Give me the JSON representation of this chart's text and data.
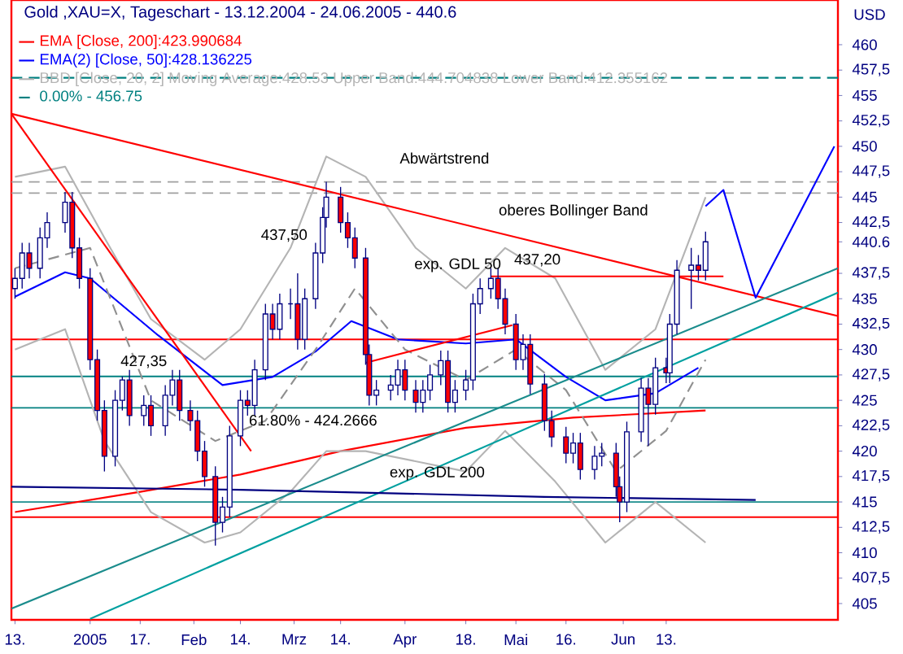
{
  "chart_data": {
    "type": "candlestick",
    "title": "Gold ,XAU=X, Tageschart - 13.12.2004 - 24.06.2005 - 440.6",
    "ylabel": "USD",
    "x": [
      "2004-12-13",
      "2004-12-15",
      "2004-12-17",
      "2004-12-20",
      "2004-12-22",
      "2004-12-27",
      "2004-12-29",
      "2004-12-31",
      "2005-01-03",
      "2005-01-05",
      "2005-01-07",
      "2005-01-10",
      "2005-01-12",
      "2005-01-14",
      "2005-01-18",
      "2005-01-20",
      "2005-01-24",
      "2005-01-26",
      "2005-01-28",
      "2005-01-31",
      "2005-02-02",
      "2005-02-04",
      "2005-02-07",
      "2005-02-09",
      "2005-02-11",
      "2005-02-14",
      "2005-02-16",
      "2005-02-18",
      "2005-02-21",
      "2005-02-23",
      "2005-02-25",
      "2005-02-28",
      "2005-03-02",
      "2005-03-04",
      "2005-03-07",
      "2005-03-09",
      "2005-03-10",
      "2005-03-14",
      "2005-03-16",
      "2005-03-18",
      "2005-03-21",
      "2005-03-22",
      "2005-03-24",
      "2005-03-28",
      "2005-03-30",
      "2005-04-01",
      "2005-04-04",
      "2005-04-06",
      "2005-04-08",
      "2005-04-11",
      "2005-04-13",
      "2005-04-15",
      "2005-04-18",
      "2005-04-20",
      "2005-04-22",
      "2005-04-25",
      "2005-04-27",
      "2005-04-29",
      "2005-05-02",
      "2005-05-04",
      "2005-05-06",
      "2005-05-10",
      "2005-05-12",
      "2005-05-16",
      "2005-05-18",
      "2005-05-20",
      "2005-05-24",
      "2005-05-26",
      "2005-05-30",
      "2005-05-31",
      "2005-06-02",
      "2005-06-06",
      "2005-06-08",
      "2005-06-10",
      "2005-06-13",
      "2005-06-14",
      "2005-06-16",
      "2005-06-20",
      "2005-06-22",
      "2005-06-24"
    ],
    "ohlc": [
      [
        436,
        438,
        435,
        437
      ],
      [
        437,
        440.5,
        436,
        439.5
      ],
      [
        439.5,
        440.5,
        437,
        438
      ],
      [
        438,
        442,
        437,
        441
      ],
      [
        441,
        443.5,
        440,
        442.5
      ],
      [
        442.5,
        445.5,
        441.5,
        444.5
      ],
      [
        444.5,
        445.5,
        439,
        440
      ],
      [
        440,
        441,
        436,
        437
      ],
      [
        437,
        438,
        428,
        429
      ],
      [
        429,
        430,
        423,
        424
      ],
      [
        424,
        425,
        418,
        419.5
      ],
      [
        419.5,
        426,
        418.5,
        425
      ],
      [
        425,
        427.35,
        424,
        427
      ],
      [
        427,
        428,
        422.5,
        423.5
      ],
      [
        423.5,
        425.5,
        422.5,
        424.5
      ],
      [
        424.5,
        425.5,
        421.5,
        422.5
      ],
      [
        422.5,
        426.5,
        421.5,
        425.5
      ],
      [
        425.5,
        428,
        424.5,
        427
      ],
      [
        427,
        428,
        423,
        424
      ],
      [
        424,
        425,
        422,
        423
      ],
      [
        423,
        424,
        419,
        420
      ],
      [
        420,
        421,
        416.5,
        417.5
      ],
      [
        417.5,
        418.5,
        410.7,
        413
      ],
      [
        413,
        415.5,
        412,
        414.5
      ],
      [
        414.5,
        422.5,
        413.5,
        421.5
      ],
      [
        421.5,
        426,
        420.5,
        425
      ],
      [
        425,
        426,
        423.5,
        424.5
      ],
      [
        424.5,
        429,
        423.5,
        428
      ],
      [
        428,
        434.5,
        427,
        433.5
      ],
      [
        433.5,
        434.5,
        431,
        432
      ],
      [
        432,
        435.5,
        431,
        434.5
      ],
      [
        434.5,
        436,
        433,
        434.5
      ],
      [
        434.5,
        437.5,
        430,
        431
      ],
      [
        431,
        436,
        430,
        435
      ],
      [
        435,
        440.5,
        434,
        439.5
      ],
      [
        439.5,
        444,
        438.5,
        443
      ],
      [
        443,
        446.5,
        442,
        445
      ],
      [
        445,
        446,
        441.5,
        442.5
      ],
      [
        442.5,
        443.5,
        440,
        441
      ],
      [
        441,
        442,
        438,
        439
      ],
      [
        439,
        440,
        428.5,
        429.5
      ],
      [
        429.5,
        430.5,
        424.5,
        425.5
      ],
      [
        425.5,
        427,
        424.5,
        426
      ],
      [
        426,
        427.5,
        425,
        426.5
      ],
      [
        426.5,
        429,
        425.5,
        428
      ],
      [
        428,
        429,
        425,
        426
      ],
      [
        426,
        427,
        423.8,
        424.8
      ],
      [
        424.8,
        427,
        423.8,
        426
      ],
      [
        426,
        428.5,
        425,
        427.5
      ],
      [
        427.5,
        429.9,
        426.5,
        428.9
      ],
      [
        428.9,
        429.9,
        423.8,
        424.8
      ],
      [
        424.8,
        427,
        423.8,
        426
      ],
      [
        426,
        428,
        425,
        427
      ],
      [
        427,
        435.5,
        426,
        434.5
      ],
      [
        434.5,
        437,
        433.5,
        436
      ],
      [
        436,
        438,
        435,
        437
      ],
      [
        437,
        438,
        434,
        435
      ],
      [
        435,
        436,
        431.5,
        432.5
      ],
      [
        432.5,
        433.5,
        428,
        429
      ],
      [
        429,
        431.5,
        428,
        430.5
      ],
      [
        430.5,
        431.5,
        425.6,
        426.6
      ],
      [
        426.6,
        427.6,
        422,
        423
      ],
      [
        423,
        424,
        420.4,
        421.4
      ],
      [
        421.4,
        422.4,
        418.8,
        419.8
      ],
      [
        419.8,
        421.8,
        418.8,
        420.8
      ],
      [
        420.8,
        421.8,
        417.2,
        418.2
      ],
      [
        418.2,
        420.5,
        417.2,
        419.5
      ],
      [
        419.5,
        420.8,
        418.5,
        419.8
      ],
      [
        419.8,
        420.8,
        415.5,
        416.5
      ],
      [
        416.5,
        417.5,
        413,
        415
      ],
      [
        415,
        422.9,
        414,
        421.9
      ],
      [
        421.9,
        427.2,
        420.9,
        426.2
      ],
      [
        426.2,
        427.2,
        420.5,
        424.6
      ],
      [
        424.6,
        429.2,
        423.6,
        428.2
      ],
      [
        428.2,
        429.2,
        426.7,
        427.7
      ],
      [
        427.7,
        433.5,
        426.7,
        432.5
      ],
      [
        432.5,
        438.8,
        431.5,
        437.8
      ],
      [
        437.8,
        440,
        434,
        438.3
      ],
      [
        438.3,
        439.3,
        436.8,
        437.8
      ],
      [
        437.8,
        441.6,
        436.8,
        440.6
      ]
    ],
    "series": [
      {
        "type": "line",
        "name": "EMA [Close, 200]:423.990684",
        "color": "#ff0000",
        "x": [
          "2004-12-13",
          "2005-01-17",
          "2005-02-14",
          "2005-03-14",
          "2005-04-18",
          "2005-05-18",
          "2005-06-24"
        ],
        "values": [
          414,
          416,
          417.7,
          420,
          422.3,
          423.3,
          424
        ]
      },
      {
        "type": "line",
        "name": "EMA(2) [Close, 50]:428.136225",
        "color": "#0000ff",
        "x": [
          "2004-12-13",
          "2004-12-27",
          "2005-01-03",
          "2005-01-22",
          "2005-02-09",
          "2005-02-23",
          "2005-03-07",
          "2005-03-17",
          "2005-03-30",
          "2005-04-18",
          "2005-05-02",
          "2005-05-16",
          "2005-05-27",
          "2005-06-10",
          "2005-06-22"
        ],
        "values": [
          435.2,
          437.6,
          437,
          431.4,
          426.5,
          427.3,
          429.8,
          432.8,
          431,
          430.6,
          431,
          427.3,
          425,
          425.7,
          428.2
        ]
      },
      {
        "type": "line",
        "name": "BBD [Close, 20, 2] Moving Average:428.53 Upper Band:444.704838 Lower Band:412.355162",
        "color": "#b4b4b4",
        "x": [
          "2004-12-13",
          "2004-12-27",
          "2005-01-07",
          "2005-01-20",
          "2005-02-04",
          "2005-02-14",
          "2005-02-28",
          "2005-03-10",
          "2005-03-21",
          "2005-04-04",
          "2005-04-18",
          "2005-04-29",
          "2005-05-13",
          "2005-05-27",
          "2005-06-10",
          "2005-06-24"
        ],
        "values": [
          447,
          448,
          441,
          433,
          429,
          432,
          440,
          449,
          447,
          440,
          436,
          440,
          437,
          428,
          432,
          445
        ]
      },
      {
        "type": "line",
        "color": "#b4b4b4",
        "x": [
          "2004-12-13",
          "2004-12-27",
          "2005-01-07",
          "2005-01-20",
          "2005-02-04",
          "2005-02-14",
          "2005-02-28",
          "2005-03-10",
          "2005-03-21",
          "2005-04-04",
          "2005-04-18",
          "2005-04-29",
          "2005-05-13",
          "2005-05-27",
          "2005-06-10",
          "2005-06-24"
        ],
        "values": [
          430,
          432,
          421,
          414,
          411,
          412,
          416,
          420,
          420,
          419,
          418,
          422,
          417,
          411,
          415,
          411
        ]
      },
      {
        "type": "line",
        "color": "#909090",
        "line_style": "dashed",
        "x": [
          "2004-12-13",
          "2005-01-03",
          "2005-01-20",
          "2005-02-07",
          "2005-02-21",
          "2005-03-07",
          "2005-03-18",
          "2005-04-01",
          "2005-04-18",
          "2005-05-02",
          "2005-05-16",
          "2005-05-30",
          "2005-06-13",
          "2005-06-24"
        ],
        "values": [
          438,
          440,
          425,
          421,
          423,
          430,
          436,
          430,
          427,
          430,
          426,
          418,
          422,
          429
        ]
      },
      {
        "type": "line",
        "name": "0.00% - 456.75",
        "color": "#008080",
        "line_style": "dashed",
        "x": [
          "2004-12-12",
          "2005-07-31"
        ],
        "values": [
          456.75,
          456.75
        ]
      },
      {
        "type": "line",
        "color": "#ff0000",
        "x": [
          "2004-12-12",
          "2005-07-31"
        ],
        "values": [
          453.2,
          433.3
        ]
      },
      {
        "type": "line",
        "color": "#ff0000",
        "x": [
          "2004-12-12",
          "2005-02-17"
        ],
        "values": [
          453.2,
          420
        ]
      },
      {
        "type": "line",
        "color": "#ff0000",
        "x": [
          "2005-03-21",
          "2005-05-01"
        ],
        "values": [
          428.7,
          432.4
        ]
      },
      {
        "type": "line",
        "color": "#ff0000",
        "x": [
          "2005-04-25",
          "2005-06-29"
        ],
        "values": [
          437.2,
          437.2
        ]
      },
      {
        "type": "line",
        "color": "#1a8c8c",
        "x": [
          "2004-12-12",
          "2005-07-31"
        ],
        "values": [
          404.5,
          438
        ]
      },
      {
        "type": "line",
        "color": "#00a0a0",
        "x": [
          "2005-01-03",
          "2005-07-31"
        ],
        "values": [
          403.5,
          435.6
        ]
      },
      {
        "type": "line",
        "color": "#000080",
        "x": [
          "2004-12-12",
          "2005-02-14",
          "2005-05-10",
          "2005-07-08"
        ],
        "values": [
          416.5,
          416.2,
          415.5,
          415.2
        ]
      },
      {
        "type": "line",
        "color": "#0000ff",
        "x": [
          "2005-06-24",
          "2005-06-29",
          "2005-07-08",
          "2005-07-30"
        ],
        "values": [
          444.1,
          445.7,
          435.1,
          450
        ]
      }
    ],
    "ref_lines": [
      {
        "axis": "y",
        "value": 431,
        "color": "#ff0000"
      },
      {
        "axis": "y",
        "value": 427.35,
        "color": "#008080"
      },
      {
        "axis": "y",
        "value": 424.2666,
        "color": "#008080"
      },
      {
        "axis": "y",
        "value": 415,
        "color": "#1a8c8c"
      },
      {
        "axis": "y",
        "value": 413.5,
        "color": "#ff0000"
      },
      {
        "axis": "y",
        "value": 446.5,
        "color": "#a0a0a0",
        "line_style": "dashed"
      },
      {
        "axis": "y",
        "value": 445.4,
        "color": "#a0a0a0",
        "line_style": "dashed"
      }
    ],
    "annotations": [
      "Abwärtstrend",
      "oberes Bollinger Band",
      "exp. GDL 50",
      "437,50",
      "61.80% - 424.2666",
      {
        "text": "exp. GDL 200",
        "x": "2005-04-10",
        "y": 417.8
      },
      {
        "text": "437,20",
        "x": "2005-05-08",
        "y": 438.8
      },
      {
        "text": "427,35",
        "x": "2005-01-18",
        "y": 428.8
      }
    ],
    "xlim": [
      "2004-12-12",
      "2005-07-31"
    ],
    "xticks": [
      {
        "value": "2004-12-13",
        "label": "13."
      },
      {
        "value": "2005-01-03",
        "label": "2005"
      },
      {
        "value": "2005-01-17",
        "label": "17."
      },
      {
        "value": "2005-02-01",
        "label": "Feb"
      },
      {
        "value": "2005-02-14",
        "label": "14."
      },
      {
        "value": "2005-03-01",
        "label": "Mrz"
      },
      {
        "value": "2005-03-14",
        "label": "14."
      },
      {
        "value": "2005-04-01",
        "label": "Apr"
      },
      {
        "value": "2005-04-18",
        "label": "18."
      },
      {
        "value": "2005-05-02",
        "label": "Mai"
      },
      {
        "value": "2005-05-16",
        "label": "16."
      },
      {
        "value": "2005-06-01",
        "label": "Jun"
      },
      {
        "value": "2005-06-13",
        "label": "13."
      }
    ],
    "ylim": [
      403.4,
      464.4
    ],
    "yticks": [
      405,
      {
        "value": 407.5,
        "label": "407,5"
      },
      410,
      {
        "value": 412.5,
        "label": "412,5"
      },
      415,
      {
        "value": 417.5,
        "label": "417,5"
      },
      420,
      {
        "value": 422.5,
        "label": "422,5"
      },
      425,
      {
        "value": 427.5,
        "label": "427,5"
      },
      430,
      {
        "value": 432.5,
        "label": "432,5"
      },
      435,
      {
        "value": 437.5,
        "label": "437,5"
      },
      440.6,
      {
        "value": 442.5,
        "label": "442,5"
      },
      445,
      {
        "value": 447.5,
        "label": "447,5"
      },
      450,
      {
        "value": 452.5,
        "label": "452,5"
      },
      455,
      {
        "value": 457.5,
        "label": "457,5"
      },
      460
    ],
    "legend": "top left"
  }
}
